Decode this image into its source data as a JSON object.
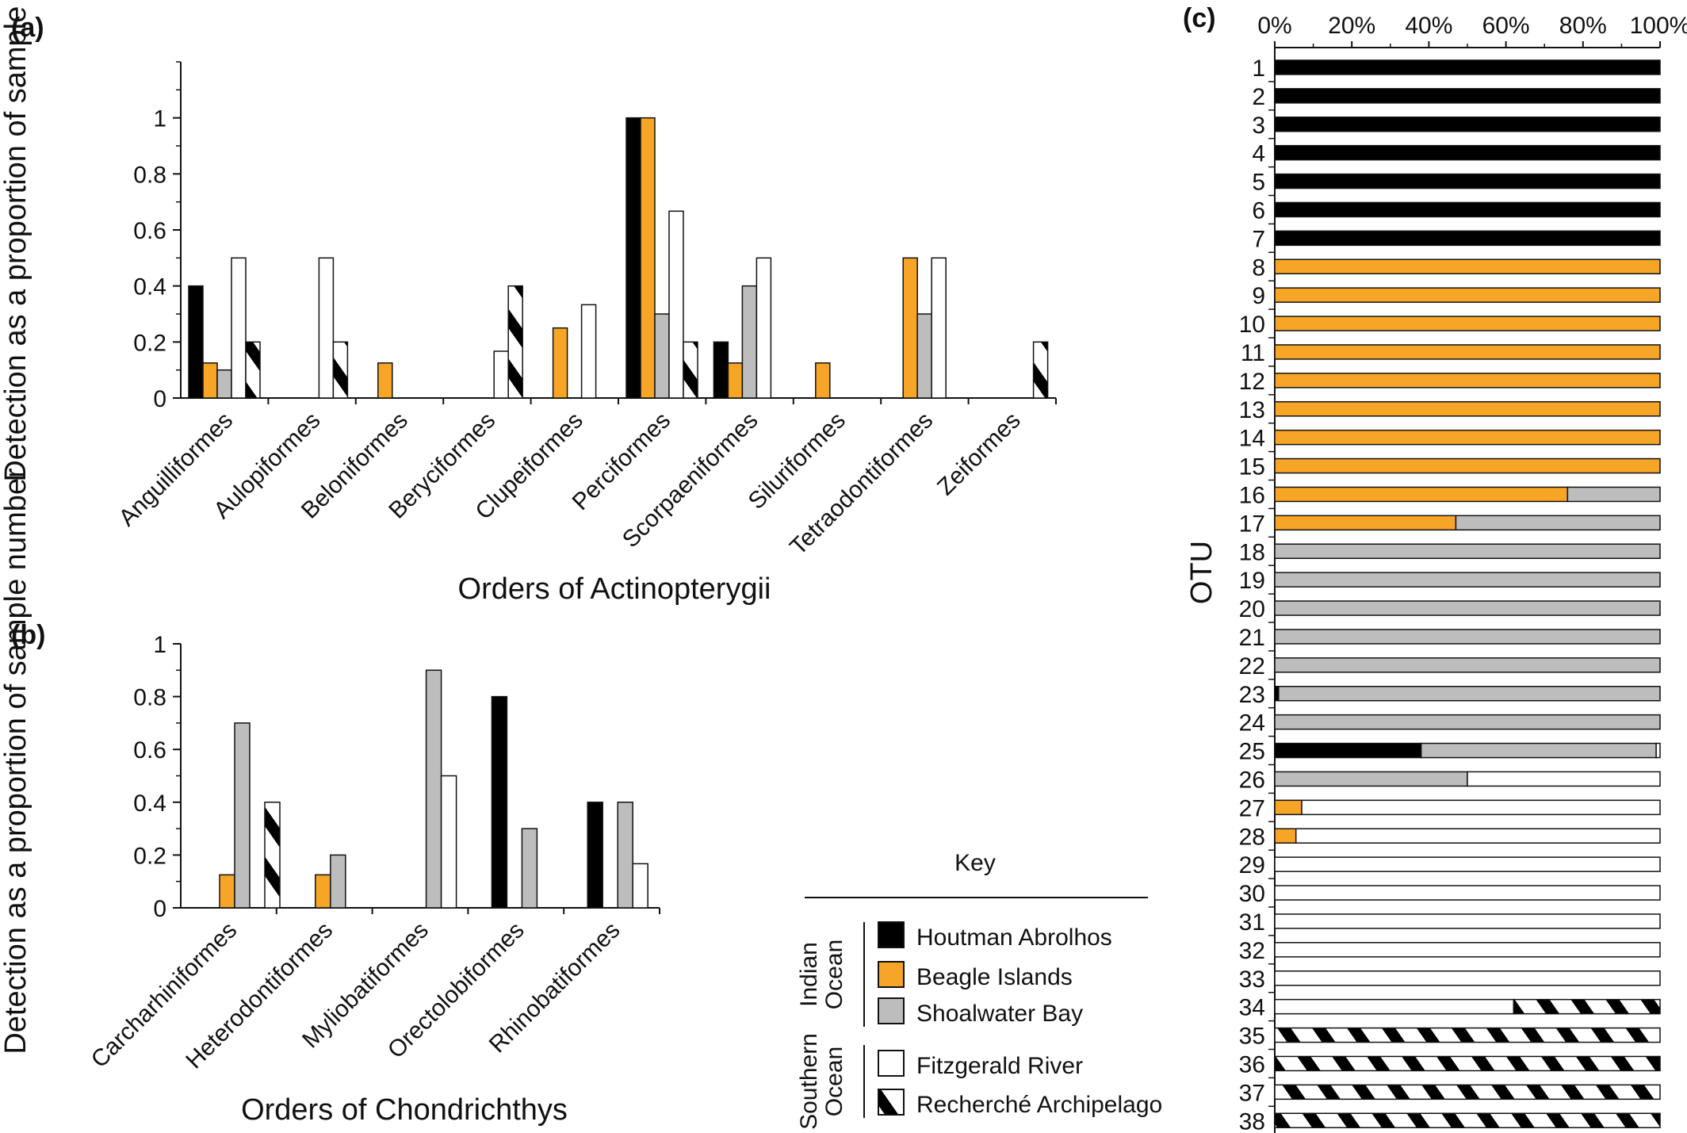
{
  "colors": {
    "Houtman Abrolhos": "#000000",
    "Beagle Islands": "#F7A526",
    "Shoalwater Bay": "#BDBDBD",
    "Fitzgerald River": "#FFFFFF",
    "Recherché Archipelago": "hatch"
  },
  "chart_data": [
    {
      "panel": "(a)",
      "type": "bar",
      "ylabel": "Detection as a proportion of sample number",
      "xlabel": "Orders of Actinopterygii",
      "ylim": [
        0,
        1.2
      ],
      "yticks": [
        "0",
        "0.2",
        "0.4",
        "0.6",
        "0.8",
        "1"
      ],
      "categories": [
        "Anguilliformes",
        "Aulopiformes",
        "Beloniformes",
        "Beryciformes",
        "Clupeiformes",
        "Perciformes",
        "Scorpaeniformes",
        "Siluriformes",
        "Tetraodontiformes",
        "Zeiformes"
      ],
      "series": [
        {
          "name": "Houtman Abrolhos",
          "values": [
            0.4,
            0,
            0,
            0,
            0,
            1.0,
            0.2,
            0,
            0,
            0
          ]
        },
        {
          "name": "Beagle Islands",
          "values": [
            0.125,
            0,
            0.125,
            0,
            0.25,
            1.0,
            0.125,
            0.125,
            0.5,
            0
          ]
        },
        {
          "name": "Shoalwater Bay",
          "values": [
            0.1,
            0,
            0,
            0,
            0,
            0.3,
            0.4,
            0,
            0.3,
            0
          ]
        },
        {
          "name": "Fitzgerald River",
          "values": [
            0.5,
            0.5,
            0,
            0.167,
            0.333,
            0.667,
            0.5,
            0,
            0.5,
            0
          ]
        },
        {
          "name": "Recherché Archipelago",
          "values": [
            0.2,
            0.2,
            0,
            0.4,
            0,
            0.2,
            0,
            0,
            0,
            0.2
          ]
        }
      ]
    },
    {
      "panel": "(b)",
      "type": "bar",
      "ylabel": "Detection as a proportion of sample number",
      "xlabel": "Orders of Chondrichthys",
      "ylim": [
        0,
        1
      ],
      "yticks": [
        "0",
        "0.2",
        "0.4",
        "0.6",
        "0.8",
        "1"
      ],
      "categories": [
        "Carcharhiniformes",
        "Heterodontiformes",
        "Myliobatiformes",
        "Orectolobiformes",
        "Rhinobatiformes"
      ],
      "series": [
        {
          "name": "Houtman Abrolhos",
          "values": [
            0,
            0,
            0,
            0.8,
            0.4
          ]
        },
        {
          "name": "Beagle Islands",
          "values": [
            0.125,
            0.125,
            0,
            0,
            0
          ]
        },
        {
          "name": "Shoalwater Bay",
          "values": [
            0.7,
            0.2,
            0.9,
            0.3,
            0.4
          ]
        },
        {
          "name": "Fitzgerald River",
          "values": [
            0,
            0,
            0.5,
            0,
            0.167
          ]
        },
        {
          "name": "Recherché Archipelago",
          "values": [
            0.4,
            0,
            0,
            0,
            0
          ]
        }
      ]
    },
    {
      "panel": "(c)",
      "type": "bar",
      "orientation": "horizontal-stacked-percent",
      "ylabel": "OTU",
      "xticks": [
        "0%",
        "20%",
        "40%",
        "60%",
        "80%",
        "100%"
      ],
      "xlim": [
        0,
        100
      ],
      "categories": [
        "1",
        "2",
        "3",
        "4",
        "5",
        "6",
        "7",
        "8",
        "9",
        "10",
        "11",
        "12",
        "13",
        "14",
        "15",
        "16",
        "17",
        "18",
        "19",
        "20",
        "21",
        "22",
        "23",
        "24",
        "25",
        "26",
        "27",
        "28",
        "29",
        "30",
        "31",
        "32",
        "33",
        "34",
        "35",
        "36",
        "37",
        "38"
      ],
      "series": [
        {
          "name": "Houtman Abrolhos",
          "values": [
            100,
            100,
            100,
            100,
            100,
            100,
            100,
            0,
            0,
            0,
            0,
            0,
            0,
            0,
            0,
            0,
            0,
            0,
            0,
            0,
            0,
            0,
            1,
            0,
            38,
            0,
            0,
            0,
            0,
            0,
            0,
            0,
            0,
            0,
            0,
            0,
            0,
            0
          ]
        },
        {
          "name": "Beagle Islands",
          "values": [
            0,
            0,
            0,
            0,
            0,
            0,
            0,
            100,
            100,
            100,
            100,
            100,
            100,
            100,
            100,
            76,
            47,
            0,
            0,
            0,
            0,
            0,
            0,
            0,
            0,
            0,
            7,
            5.5,
            0,
            0,
            0,
            0,
            0,
            0,
            0,
            0,
            0,
            0
          ]
        },
        {
          "name": "Shoalwater Bay",
          "values": [
            0,
            0,
            0,
            0,
            0,
            0,
            0,
            0,
            0,
            0,
            0,
            0,
            0,
            0,
            0,
            24,
            53,
            100,
            100,
            100,
            100,
            100,
            99,
            100,
            61,
            50,
            0,
            0,
            0,
            0,
            0,
            0,
            0,
            0,
            0,
            0,
            0,
            0
          ]
        },
        {
          "name": "Fitzgerald River",
          "values": [
            0,
            0,
            0,
            0,
            0,
            0,
            0,
            0,
            0,
            0,
            0,
            0,
            0,
            0,
            0,
            0,
            0,
            0,
            0,
            0,
            0,
            0,
            0,
            0,
            1,
            50,
            93,
            94.5,
            100,
            100,
            100,
            100,
            100,
            62,
            0,
            0,
            0,
            0
          ]
        },
        {
          "name": "Recherché Archipelago",
          "values": [
            0,
            0,
            0,
            0,
            0,
            0,
            0,
            0,
            0,
            0,
            0,
            0,
            0,
            0,
            0,
            0,
            0,
            0,
            0,
            0,
            0,
            0,
            0,
            0,
            0,
            0,
            0,
            0,
            0,
            0,
            0,
            0,
            0,
            38,
            100,
            100,
            100,
            100
          ]
        }
      ]
    }
  ],
  "key": {
    "title": "Key",
    "groups": [
      {
        "label_lines": [
          "Indian",
          "Ocean"
        ],
        "items": [
          "Houtman Abrolhos",
          "Beagle Islands",
          "Shoalwater Bay"
        ]
      },
      {
        "label_lines": [
          "Southern",
          "Ocean"
        ],
        "items": [
          "Fitzgerald River",
          "Recherché Archipelago"
        ]
      }
    ]
  }
}
